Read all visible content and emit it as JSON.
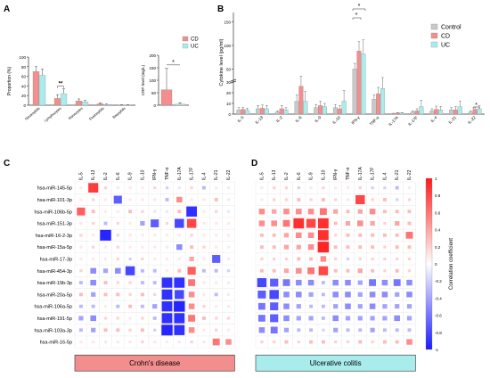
{
  "chart_data": [
    {
      "panel": "A",
      "type": "bar",
      "ylabel": "Proportion (%)",
      "ylim": [
        0,
        100
      ],
      "yticks": [
        0,
        20,
        40,
        60,
        80,
        100
      ],
      "categories": [
        "Neutrophils",
        "Lymphocytes",
        "Monocytes",
        "Eosinophils",
        "Basophils"
      ],
      "series": [
        {
          "name": "CD",
          "color": "#f28e8e",
          "values": [
            70,
            14,
            9,
            3,
            0.5
          ],
          "errors": [
            10,
            8,
            4,
            2,
            0.5
          ]
        },
        {
          "name": "UC",
          "color": "#a8ecec",
          "values": [
            62,
            24,
            7,
            1.5,
            0.5
          ],
          "errors": [
            13,
            10,
            3,
            1,
            0.5
          ]
        }
      ],
      "annotations": [
        {
          "category": 1,
          "text": "**"
        }
      ]
    },
    {
      "panel": "A-inset",
      "type": "bar",
      "ylabel": "CRP level (mg/L)",
      "ylim": [
        0,
        200
      ],
      "yticks": [
        0,
        50,
        100,
        150,
        200
      ],
      "categories": [
        "CD",
        "UC"
      ],
      "values": [
        62,
        4
      ],
      "errors": [
        85,
        6
      ],
      "colors": [
        "#f28e8e",
        "#a8ecec"
      ],
      "legend": [
        "CD",
        "UC"
      ],
      "annotations": [
        {
          "text": "*"
        }
      ]
    },
    {
      "panel": "B",
      "type": "bar",
      "ylabel": "Cytokine level (pg/ml)",
      "y_broken": true,
      "yticks_lower": [
        0,
        10,
        20,
        30
      ],
      "yticks_upper": [
        50,
        100,
        150
      ],
      "categories": [
        "IL-5",
        "IL-13",
        "IL-2",
        "IL-6",
        "IL-9",
        "IL-10",
        "IFN-γ",
        "TNF-α",
        "IL-17A",
        "IL-17F",
        "IL-4",
        "IL-21",
        "IL-22"
      ],
      "legend_placement": "top-right",
      "series": [
        {
          "name": "Control",
          "color": "#c8c8c8",
          "values": [
            4,
            5,
            2,
            12,
            6,
            6,
            50,
            14,
            0.5,
            2,
            3,
            4,
            2
          ],
          "errors": [
            2,
            3,
            1,
            6,
            3,
            3,
            12,
            4,
            0.3,
            1,
            2,
            2,
            1
          ]
        },
        {
          "name": "CD",
          "color": "#f28e8e",
          "values": [
            4.5,
            5.5,
            5,
            26,
            8,
            5,
            88,
            19,
            1,
            3,
            4.5,
            4,
            4.5
          ],
          "errors": [
            2,
            3,
            3,
            9,
            4,
            3,
            20,
            6,
            0.5,
            2,
            3,
            3,
            2
          ]
        },
        {
          "name": "UC",
          "color": "#a8ecec",
          "values": [
            3.5,
            5,
            4,
            12,
            7,
            12,
            82,
            24,
            1,
            7,
            4,
            7,
            5
          ],
          "errors": [
            2,
            3,
            2,
            9,
            3,
            10,
            30,
            8,
            0.5,
            6,
            3,
            5,
            3
          ]
        }
      ],
      "annotations": [
        {
          "category": 6,
          "text": "*"
        },
        {
          "category": 6,
          "text": "*"
        },
        {
          "category": 12,
          "text": "*"
        }
      ]
    },
    {
      "panel": "C",
      "type": "heatmap",
      "label": "Crohn's disease",
      "columns": [
        "IL-5",
        "IL-13",
        "IL-2",
        "IL-6",
        "IL-9",
        "IL-10",
        "IFN-γ",
        "TNF-α",
        "IL-17A",
        "IL-17F",
        "IL-4",
        "IL-21",
        "IL-22"
      ],
      "rows": [
        "hsa-miR-145-5p",
        "hsa-miR-101-3p",
        "hsa-miR-106b-5p",
        "hsa-miR-151-3p",
        "hsa-miR-16-2-3p",
        "hsa-miR-15a-5p",
        "hsa-miR-17-3p",
        "hsa-miR-454-3p",
        "hsa-miR-19b-3p",
        "hsa-miR-20a-5p",
        "hsa-miR-106a-5p",
        "hsa-miR-191-5p",
        "hsa-miR-103a-3p",
        "hsa-miR-16-5p"
      ],
      "values": [
        [
          0.1,
          0.85,
          0.2,
          0.1,
          0.1,
          0.1,
          0.2,
          -0.2,
          -0.1,
          0.2,
          -0.3,
          0.1,
          0.1
        ],
        [
          0.1,
          0.2,
          0.1,
          -0.7,
          0.1,
          0.1,
          0.1,
          -0.3,
          0.5,
          0.1,
          0.1,
          0.3,
          0.1
        ],
        [
          0.7,
          0.3,
          0.1,
          0.1,
          0.3,
          0.2,
          -0.1,
          -0.1,
          0.3,
          -0.9,
          0.1,
          0.2,
          -0.1
        ],
        [
          0.1,
          0.2,
          -0.3,
          0.2,
          0.1,
          -0.4,
          -0.7,
          0.2,
          -0.8,
          0.8,
          0.1,
          0.1,
          0.1
        ],
        [
          0.2,
          0.1,
          -0.95,
          0.2,
          0.1,
          0.1,
          0.1,
          0.1,
          0.1,
          0.2,
          0.1,
          0.1,
          0.1
        ],
        [
          0.1,
          0.2,
          0.1,
          0.2,
          0.1,
          0.1,
          0.1,
          0.1,
          -0.5,
          0.3,
          0.2,
          0.1,
          0.1
        ],
        [
          0.1,
          0.1,
          0.1,
          0.2,
          -0.2,
          0.2,
          0.1,
          0.1,
          0.1,
          0.4,
          0.1,
          -0.7,
          0.1
        ],
        [
          0.2,
          -0.5,
          -0.4,
          -0.5,
          -0.8,
          -0.3,
          -0.3,
          0.1,
          0.3,
          0.7,
          -0.3,
          -0.3,
          -0.2
        ],
        [
          -0.3,
          -0.5,
          0.3,
          0.2,
          0.2,
          -0.3,
          -0.3,
          -0.9,
          -0.9,
          0.6,
          0.1,
          0.1,
          0.1
        ],
        [
          0.3,
          -0.4,
          0.3,
          0.3,
          0.2,
          0.3,
          0.2,
          -0.9,
          -0.8,
          0.5,
          0.1,
          -0.3,
          0.1
        ],
        [
          -0.3,
          -0.3,
          0.1,
          -0.3,
          0.3,
          -0.3,
          -0.4,
          -0.9,
          -0.95,
          0.5,
          0.2,
          0.1,
          0.1
        ],
        [
          -0.4,
          -0.5,
          0.2,
          0.2,
          0.1,
          0.2,
          -0.3,
          -0.9,
          -0.9,
          0.6,
          0.3,
          0.2,
          0.2
        ],
        [
          -0.3,
          -0.4,
          0.3,
          0.3,
          0.2,
          0.3,
          -0.2,
          -0.95,
          -0.9,
          0.5,
          0.1,
          0.2,
          0.1
        ],
        [
          0.1,
          0.1,
          0.1,
          0.1,
          0.1,
          0.2,
          0.1,
          0.1,
          0.1,
          0.2,
          0.1,
          0.6,
          0.5
        ]
      ]
    },
    {
      "panel": "D",
      "type": "heatmap",
      "label": "Ulcerative colitis",
      "columns": [
        "IL-5",
        "IL-13",
        "IL-2",
        "IL-6",
        "IL-9",
        "IL-10",
        "IFN-γ",
        "TNF-α",
        "IL-17A",
        "IL-17F",
        "IL-4",
        "IL-21",
        "IL-22"
      ],
      "rows": [
        "hsa-miR-145-5p",
        "hsa-miR-101-3p",
        "hsa-miR-106b-5p",
        "hsa-miR-151-3p",
        "hsa-miR-16-2-3p",
        "hsa-miR-15a-5p",
        "hsa-miR-17-3p",
        "hsa-miR-454-3p",
        "hsa-miR-19b-3p",
        "hsa-miR-20a-5p",
        "hsa-miR-106a-5p",
        "hsa-miR-191-5p",
        "hsa-miR-103a-3p",
        "hsa-miR-16-5p"
      ],
      "values": [
        [
          0.1,
          0.2,
          0.2,
          -0.2,
          0.1,
          0.2,
          0.1,
          0.1,
          0.2,
          -0.2,
          -0.2,
          -0.3,
          0.1
        ],
        [
          0.1,
          0.2,
          0.2,
          0.3,
          0.2,
          0.3,
          0.2,
          0.1,
          0.8,
          0.2,
          0.3,
          -0.2,
          0.2
        ],
        [
          0.5,
          0.4,
          0.5,
          0.5,
          0.5,
          0.6,
          0.4,
          0.3,
          0.4,
          0.5,
          0.3,
          0.3,
          0.3
        ],
        [
          0.5,
          0.5,
          0.6,
          0.9,
          0.8,
          0.9,
          0.3,
          0.4,
          0.5,
          0.4,
          0.2,
          0.4,
          0.3
        ],
        [
          0.3,
          0.3,
          0.4,
          0.5,
          0.5,
          0.9,
          0.2,
          0.3,
          0.3,
          0.3,
          0.3,
          0.3,
          0.6
        ],
        [
          0.3,
          0.3,
          0.4,
          0.4,
          0.5,
          0.95,
          0.3,
          0.3,
          0.3,
          0.3,
          0.2,
          0.3,
          0.3
        ],
        [
          0.2,
          0.2,
          0.2,
          0.3,
          0.3,
          0.5,
          0.2,
          -0.2,
          0.2,
          0.2,
          0.2,
          0.2,
          0.2
        ],
        [
          0.3,
          0.3,
          0.4,
          0.5,
          0.6,
          0.8,
          0.3,
          0.3,
          0.4,
          0.3,
          0.2,
          0.3,
          0.2
        ],
        [
          -0.8,
          -0.7,
          -0.6,
          -0.5,
          -0.5,
          -0.3,
          -0.5,
          -0.5,
          -0.4,
          -0.6,
          -0.5,
          -0.6,
          -0.5
        ],
        [
          -0.7,
          -0.8,
          -0.5,
          -0.5,
          -0.4,
          -0.3,
          -0.5,
          -0.5,
          -0.4,
          -0.5,
          -0.5,
          -0.4,
          -0.5
        ],
        [
          -0.6,
          -0.7,
          -0.5,
          -0.4,
          -0.3,
          -0.3,
          -0.4,
          -0.5,
          -0.4,
          -0.5,
          -0.4,
          -0.4,
          -0.4
        ],
        [
          -0.6,
          -0.7,
          -0.5,
          -0.4,
          -0.4,
          -0.3,
          -0.5,
          -0.4,
          -0.4,
          -0.4,
          -0.4,
          -0.5,
          -0.4
        ],
        [
          -0.5,
          -0.6,
          -0.4,
          -0.3,
          -0.3,
          -0.2,
          -0.4,
          -0.3,
          -0.3,
          -0.4,
          -0.3,
          -0.3,
          -0.3
        ],
        [
          0.2,
          0.2,
          0.3,
          0.2,
          0.3,
          0.3,
          0.2,
          0.2,
          0.3,
          0.2,
          0.3,
          0.3,
          0.5
        ]
      ],
      "colorbar": {
        "label": "Correlation coefficient",
        "ticks": [
          -1,
          -0.8,
          -0.6,
          -0.4,
          -0.2,
          0,
          0.2,
          0.4,
          0.6,
          0.8,
          1
        ],
        "colors": [
          "#1a1aff",
          "#ffffff",
          "#ff1a1a"
        ]
      }
    }
  ],
  "labels": {
    "a": "A",
    "b": "B",
    "c": "C",
    "d": "D"
  },
  "sig": {
    "double": "**",
    "single": "*"
  }
}
